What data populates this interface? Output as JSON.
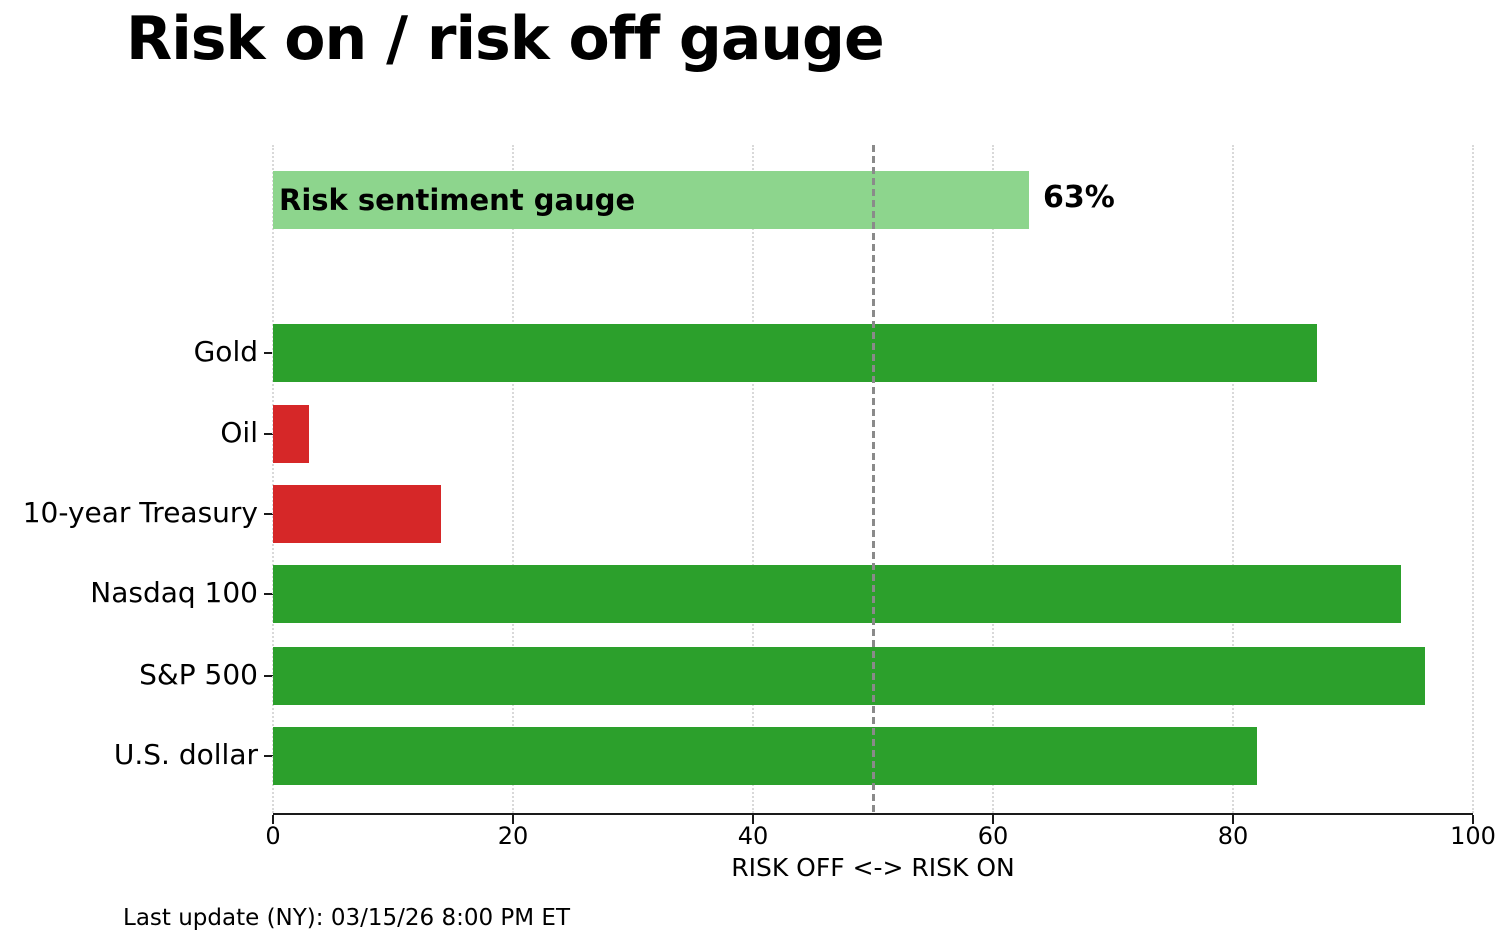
{
  "title": "Risk on / risk off gauge",
  "footer": {
    "last_update": "Last update (NY): 03/15/26 8:00 PM ET"
  },
  "chart_data": {
    "type": "bar",
    "orientation": "horizontal",
    "title": "Risk on / risk off gauge",
    "xlabel": "RISK OFF <-> RISK ON",
    "xlim": [
      0,
      100
    ],
    "xticks": [
      0,
      20,
      40,
      60,
      80,
      100
    ],
    "grid": "vertical dotted gridlines at each xtick",
    "legend": "none",
    "reference_line": {
      "x": 50,
      "style": "dashed",
      "color": "#8a8a8a"
    },
    "gauge_bar": {
      "label": "Risk sentiment gauge",
      "value": 63,
      "value_label": "63%",
      "color": "#8dd58d"
    },
    "categories": [
      "Gold",
      "Oil",
      "10-year Treasury",
      "Nasdaq 100",
      "S&P 500",
      "U.S. dollar"
    ],
    "values": [
      87,
      3,
      14,
      94,
      96,
      82
    ],
    "bar_colors": [
      "#2ca02c",
      "#d62728",
      "#d62728",
      "#2ca02c",
      "#2ca02c",
      "#2ca02c"
    ],
    "colors": {
      "risk_on_green": "#2ca02c",
      "risk_off_red": "#d62728",
      "gauge_light_green": "#8dd58d",
      "gridline": "#d9d9d9",
      "axis": "#1a1a1a"
    }
  }
}
